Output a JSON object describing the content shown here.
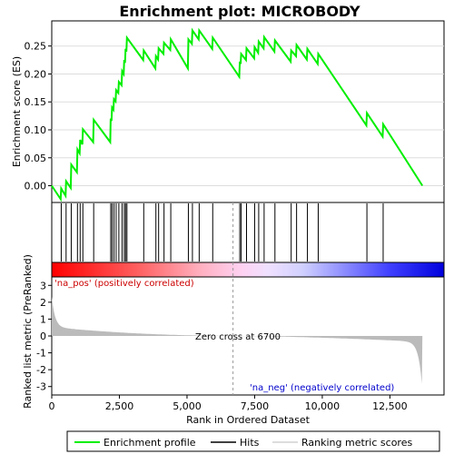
{
  "chart_data": {
    "type": "line",
    "title": "Enrichment plot: MICROBODY",
    "xlabel": "Rank in Ordered Dataset",
    "top_ylabel": "Enrichment score (ES)",
    "bottom_ylabel": "Ranked list metric (PreRanked)",
    "x_range": [
      0,
      14500
    ],
    "x_ticks": [
      0,
      2500,
      5000,
      7500,
      10000,
      12500
    ],
    "x_tick_labels": [
      "0",
      "2,500",
      "5,000",
      "7,500",
      "10,000",
      "12,500"
    ],
    "es_range": [
      -0.03,
      0.295
    ],
    "es_ticks": [
      0.0,
      0.05,
      0.1,
      0.15,
      0.2,
      0.25
    ],
    "es_tick_labels": [
      "0.00",
      "0.05",
      "0.10",
      "0.15",
      "0.20",
      "0.25"
    ],
    "metric_range": [
      -3.5,
      3.5
    ],
    "metric_ticks": [
      3,
      2,
      1,
      0,
      -1,
      -2,
      -3
    ],
    "metric_tick_labels": [
      "3",
      "2",
      "1",
      "0",
      "-1",
      "-2",
      "-3"
    ],
    "n_genes": 13700,
    "zero_cross_rank": 6700,
    "zero_cross_label": "Zero cross at 6700",
    "pos_label": "'na_pos' (positively correlated)",
    "neg_label": "'na_neg' (negatively correlated)",
    "hits": [
      350,
      530,
      720,
      950,
      1050,
      1150,
      1550,
      2180,
      2230,
      2300,
      2380,
      2480,
      2600,
      2680,
      2730,
      2780,
      3400,
      3850,
      3950,
      4150,
      4400,
      5050,
      5200,
      5450,
      5950,
      6950,
      7000,
      7200,
      7500,
      7650,
      7850,
      8250,
      8850,
      9050,
      9450,
      9850,
      11650,
      12250
    ],
    "es_profile": [
      [
        0,
        0.0
      ],
      [
        330,
        -0.024
      ],
      [
        350,
        -0.005
      ],
      [
        510,
        -0.018
      ],
      [
        530,
        0.008
      ],
      [
        700,
        -0.004
      ],
      [
        720,
        0.038
      ],
      [
        930,
        0.024
      ],
      [
        950,
        0.065
      ],
      [
        1030,
        0.058
      ],
      [
        1050,
        0.082
      ],
      [
        1130,
        0.074
      ],
      [
        1150,
        0.101
      ],
      [
        1530,
        0.078
      ],
      [
        1550,
        0.118
      ],
      [
        2160,
        0.078
      ],
      [
        2180,
        0.12
      ],
      [
        2210,
        0.116
      ],
      [
        2230,
        0.14
      ],
      [
        2280,
        0.136
      ],
      [
        2300,
        0.155
      ],
      [
        2360,
        0.151
      ],
      [
        2380,
        0.171
      ],
      [
        2460,
        0.166
      ],
      [
        2480,
        0.186
      ],
      [
        2580,
        0.18
      ],
      [
        2600,
        0.205
      ],
      [
        2660,
        0.2
      ],
      [
        2680,
        0.225
      ],
      [
        2710,
        0.22
      ],
      [
        2730,
        0.245
      ],
      [
        2760,
        0.24
      ],
      [
        2780,
        0.265
      ],
      [
        3380,
        0.225
      ],
      [
        3400,
        0.242
      ],
      [
        3830,
        0.21
      ],
      [
        3850,
        0.232
      ],
      [
        3930,
        0.226
      ],
      [
        3950,
        0.246
      ],
      [
        4130,
        0.236
      ],
      [
        4150,
        0.256
      ],
      [
        4380,
        0.243
      ],
      [
        4400,
        0.262
      ],
      [
        5030,
        0.21
      ],
      [
        5050,
        0.262
      ],
      [
        5180,
        0.254
      ],
      [
        5200,
        0.278
      ],
      [
        5430,
        0.262
      ],
      [
        5450,
        0.278
      ],
      [
        5930,
        0.245
      ],
      [
        5950,
        0.265
      ],
      [
        6930,
        0.195
      ],
      [
        6950,
        0.222
      ],
      [
        6980,
        0.218
      ],
      [
        7000,
        0.236
      ],
      [
        7180,
        0.225
      ],
      [
        7200,
        0.246
      ],
      [
        7480,
        0.228
      ],
      [
        7500,
        0.248
      ],
      [
        7630,
        0.238
      ],
      [
        7650,
        0.258
      ],
      [
        7830,
        0.246
      ],
      [
        7850,
        0.266
      ],
      [
        8230,
        0.24
      ],
      [
        8250,
        0.26
      ],
      [
        8830,
        0.222
      ],
      [
        8850,
        0.242
      ],
      [
        9030,
        0.232
      ],
      [
        9050,
        0.252
      ],
      [
        9430,
        0.226
      ],
      [
        9450,
        0.245
      ],
      [
        9830,
        0.218
      ],
      [
        9850,
        0.236
      ],
      [
        11630,
        0.108
      ],
      [
        11650,
        0.13
      ],
      [
        12230,
        0.088
      ],
      [
        12250,
        0.11
      ],
      [
        13700,
        0.0
      ]
    ]
  },
  "legend": {
    "items": [
      {
        "label": "Enrichment profile",
        "color": "#00ee00"
      },
      {
        "label": "Hits",
        "color": "#000000"
      },
      {
        "label": "Ranking metric scores",
        "color": "#bbbbbb"
      }
    ]
  },
  "colors": {
    "es_line": "#00ee00",
    "metric_fill": "#bbbbbb",
    "pos_text": "#cc0000",
    "neg_text": "#0000cc",
    "zero_line": "#999999"
  }
}
